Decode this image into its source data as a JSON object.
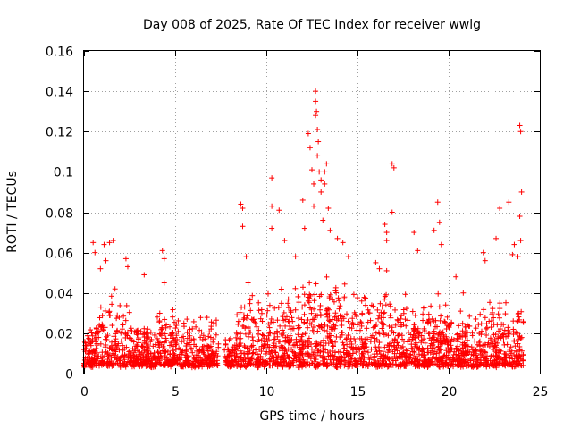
{
  "chart_data": {
    "type": "scatter",
    "title": "Day 008 of 2025, Rate Of TEC Index for receiver wwlg",
    "xlabel": "GPS time / hours",
    "ylabel": "ROTI / TECUs",
    "xlim": [
      0,
      25
    ],
    "ylim": [
      0,
      0.16
    ],
    "x_ticks": [
      0,
      5,
      10,
      15,
      20,
      25
    ],
    "x_tick_labels": [
      "0",
      "5",
      "10",
      "15",
      "20",
      "25"
    ],
    "y_ticks": [
      0,
      0.02,
      0.04,
      0.06,
      0.08,
      0.1,
      0.12,
      0.14,
      0.16
    ],
    "y_tick_labels": [
      "0",
      "0.02",
      "0.04",
      "0.06",
      "0.08",
      "0.1",
      "0.12",
      "0.14",
      "0.16"
    ],
    "grid": true,
    "marker": "+",
    "color": "#ff0000",
    "series": [
      {
        "name": "ROTI",
        "points": [
          [
            0.5,
            0.065
          ],
          [
            0.6,
            0.06
          ],
          [
            0.9,
            0.052
          ],
          [
            1.1,
            0.064
          ],
          [
            1.2,
            0.056
          ],
          [
            1.4,
            0.065
          ],
          [
            1.6,
            0.066
          ],
          [
            1.7,
            0.042
          ],
          [
            2.3,
            0.057
          ],
          [
            2.4,
            0.053
          ],
          [
            3.3,
            0.049
          ],
          [
            4.3,
            0.061
          ],
          [
            4.4,
            0.057
          ],
          [
            4.4,
            0.045
          ],
          [
            8.6,
            0.084
          ],
          [
            8.7,
            0.082
          ],
          [
            8.7,
            0.073
          ],
          [
            9.0,
            0.045
          ],
          [
            8.9,
            0.058
          ],
          [
            10.3,
            0.097
          ],
          [
            10.3,
            0.083
          ],
          [
            10.3,
            0.072
          ],
          [
            10.7,
            0.081
          ],
          [
            11.0,
            0.066
          ],
          [
            11.6,
            0.058
          ],
          [
            12.0,
            0.086
          ],
          [
            12.1,
            0.072
          ],
          [
            12.3,
            0.119
          ],
          [
            12.4,
            0.112
          ],
          [
            12.5,
            0.101
          ],
          [
            12.6,
            0.094
          ],
          [
            12.6,
            0.083
          ],
          [
            12.7,
            0.14
          ],
          [
            12.7,
            0.135
          ],
          [
            12.75,
            0.13
          ],
          [
            12.7,
            0.128
          ],
          [
            12.8,
            0.121
          ],
          [
            12.85,
            0.115
          ],
          [
            12.8,
            0.108
          ],
          [
            12.9,
            0.1
          ],
          [
            13.0,
            0.096
          ],
          [
            13.2,
            0.1
          ],
          [
            13.3,
            0.104
          ],
          [
            13.2,
            0.094
          ],
          [
            13.0,
            0.09
          ],
          [
            13.1,
            0.076
          ],
          [
            13.4,
            0.082
          ],
          [
            13.5,
            0.071
          ],
          [
            13.9,
            0.067
          ],
          [
            14.2,
            0.065
          ],
          [
            14.5,
            0.058
          ],
          [
            16.0,
            0.055
          ],
          [
            16.2,
            0.052
          ],
          [
            16.6,
            0.051
          ],
          [
            16.9,
            0.104
          ],
          [
            17.0,
            0.102
          ],
          [
            16.9,
            0.08
          ],
          [
            16.6,
            0.066
          ],
          [
            16.5,
            0.074
          ],
          [
            16.6,
            0.07
          ],
          [
            18.1,
            0.07
          ],
          [
            18.3,
            0.061
          ],
          [
            19.2,
            0.071
          ],
          [
            19.4,
            0.085
          ],
          [
            19.5,
            0.075
          ],
          [
            19.6,
            0.064
          ],
          [
            20.4,
            0.048
          ],
          [
            20.8,
            0.04
          ],
          [
            21.9,
            0.06
          ],
          [
            22.0,
            0.056
          ],
          [
            22.6,
            0.067
          ],
          [
            22.8,
            0.082
          ],
          [
            23.3,
            0.085
          ],
          [
            23.5,
            0.059
          ],
          [
            23.6,
            0.064
          ],
          [
            23.9,
            0.123
          ],
          [
            23.95,
            0.12
          ],
          [
            24.0,
            0.09
          ],
          [
            23.9,
            0.078
          ],
          [
            23.95,
            0.066
          ],
          [
            23.8,
            0.058
          ]
        ]
      }
    ]
  }
}
